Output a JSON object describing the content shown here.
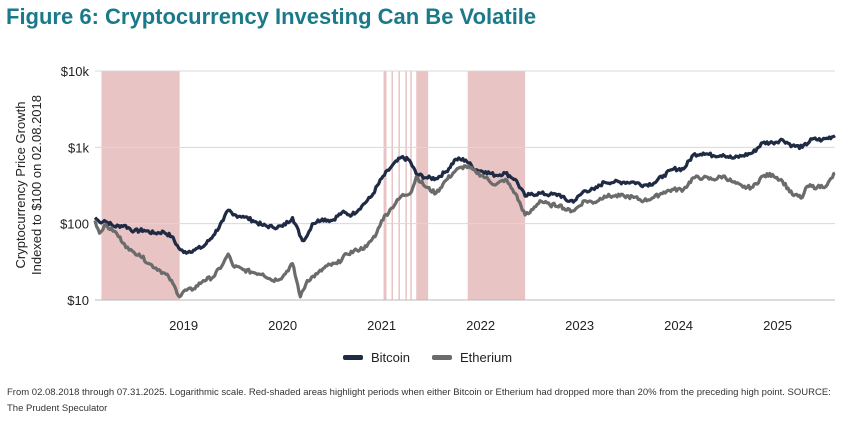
{
  "title": "Figure 6: Cryptocurrency Investing Can Be Volatile",
  "colors": {
    "title": "#1b7a8a",
    "bitcoin": "#1f2a44",
    "etherium": "#6b6b6b",
    "shade": "#e8c4c4",
    "grid": "#d8d8d8"
  },
  "footnote": "From 02.08.2018 through 07.31.2025. Logarithmic scale. Red-shaded areas highlight periods when either Bitcoin or Etherium had dropped more than 20% from the preceding high point. SOURCE: The Prudent Speculator",
  "chart_data": {
    "type": "line",
    "ylabel_lines": [
      "Cryptocurrency Price Growth",
      "Indexed to $100 on 02.08.2018"
    ],
    "y_scale": "log",
    "ylim": [
      10,
      10000
    ],
    "yticks": [
      10,
      100,
      1000,
      10000
    ],
    "ytick_labels": [
      "$10",
      "$100",
      "$1k",
      "$10k"
    ],
    "xlim": [
      2018.105,
      2025.58
    ],
    "xticks": [
      2019,
      2020,
      2021,
      2022,
      2023,
      2024,
      2025
    ],
    "xtick_labels": [
      "2019",
      "2020",
      "2021",
      "2022",
      "2023",
      "2024",
      "2025"
    ],
    "grid": "horizontal",
    "legend": "bottom-center",
    "shaded_periods": [
      [
        2018.17,
        2018.96
      ],
      [
        2021.02,
        2021.05
      ],
      [
        2021.1,
        2021.11
      ],
      [
        2021.17,
        2021.18
      ],
      [
        2021.24,
        2021.25
      ],
      [
        2021.29,
        2021.3
      ],
      [
        2021.35,
        2021.47
      ],
      [
        2021.87,
        2022.45
      ]
    ],
    "series": [
      {
        "name": "Bitcoin",
        "x": [
          2018.105,
          2018.15,
          2018.2,
          2018.3,
          2018.4,
          2018.5,
          2018.6,
          2018.7,
          2018.8,
          2018.88,
          2018.95,
          2019.0,
          2019.1,
          2019.2,
          2019.3,
          2019.4,
          2019.45,
          2019.5,
          2019.6,
          2019.7,
          2019.8,
          2019.9,
          2020.0,
          2020.1,
          2020.2,
          2020.25,
          2020.3,
          2020.4,
          2020.5,
          2020.6,
          2020.7,
          2020.8,
          2020.9,
          2021.0,
          2021.1,
          2021.2,
          2021.28,
          2021.35,
          2021.45,
          2021.55,
          2021.65,
          2021.75,
          2021.85,
          2021.95,
          2022.05,
          2022.15,
          2022.25,
          2022.35,
          2022.45,
          2022.5,
          2022.6,
          2022.7,
          2022.8,
          2022.87,
          2022.95,
          2023.05,
          2023.15,
          2023.25,
          2023.35,
          2023.45,
          2023.55,
          2023.65,
          2023.75,
          2023.85,
          2023.95,
          2024.05,
          2024.15,
          2024.25,
          2024.35,
          2024.45,
          2024.55,
          2024.65,
          2024.75,
          2024.85,
          2024.95,
          2025.05,
          2025.15,
          2025.25,
          2025.35,
          2025.45,
          2025.58
        ],
        "values": [
          120,
          105,
          110,
          92,
          95,
          80,
          82,
          75,
          78,
          68,
          48,
          42,
          45,
          50,
          70,
          110,
          150,
          130,
          125,
          110,
          95,
          90,
          92,
          120,
          60,
          70,
          100,
          115,
          110,
          140,
          130,
          170,
          230,
          390,
          560,
          740,
          680,
          450,
          400,
          390,
          480,
          700,
          680,
          510,
          480,
          430,
          460,
          380,
          230,
          240,
          250,
          240,
          240,
          200,
          200,
          270,
          280,
          350,
          350,
          350,
          350,
          320,
          340,
          430,
          520,
          520,
          800,
          840,
          780,
          800,
          720,
          780,
          850,
          1150,
          1150,
          1260,
          1050,
          1000,
          1280,
          1250,
          1420
        ]
      },
      {
        "name": "Etherium",
        "x": [
          2018.105,
          2018.15,
          2018.2,
          2018.3,
          2018.4,
          2018.45,
          2018.5,
          2018.55,
          2018.65,
          2018.75,
          2018.85,
          2018.92,
          2018.96,
          2019.0,
          2019.1,
          2019.2,
          2019.3,
          2019.4,
          2019.45,
          2019.5,
          2019.6,
          2019.7,
          2019.8,
          2019.9,
          2020.0,
          2020.1,
          2020.18,
          2020.25,
          2020.35,
          2020.45,
          2020.55,
          2020.65,
          2020.75,
          2020.85,
          2020.95,
          2021.0,
          2021.1,
          2021.2,
          2021.3,
          2021.35,
          2021.45,
          2021.55,
          2021.65,
          2021.75,
          2021.85,
          2021.95,
          2022.05,
          2022.15,
          2022.25,
          2022.35,
          2022.45,
          2022.5,
          2022.6,
          2022.7,
          2022.8,
          2022.87,
          2022.95,
          2023.05,
          2023.15,
          2023.25,
          2023.35,
          2023.45,
          2023.55,
          2023.65,
          2023.75,
          2023.85,
          2023.95,
          2024.05,
          2024.15,
          2024.25,
          2024.35,
          2024.45,
          2024.55,
          2024.65,
          2024.75,
          2024.85,
          2024.95,
          2025.05,
          2025.15,
          2025.25,
          2025.3,
          2025.4,
          2025.5,
          2025.58
        ],
        "values": [
          110,
          75,
          95,
          80,
          55,
          45,
          42,
          40,
          30,
          25,
          20,
          14,
          11,
          13,
          14,
          18,
          20,
          30,
          40,
          28,
          25,
          23,
          22,
          18,
          20,
          30,
          11,
          18,
          22,
          28,
          30,
          40,
          45,
          50,
          75,
          110,
          160,
          230,
          260,
          410,
          300,
          250,
          370,
          500,
          570,
          480,
          400,
          320,
          380,
          250,
          130,
          140,
          200,
          175,
          175,
          150,
          150,
          200,
          190,
          230,
          230,
          230,
          220,
          200,
          220,
          260,
          280,
          280,
          400,
          400,
          380,
          420,
          350,
          300,
          300,
          420,
          440,
          360,
          240,
          220,
          310,
          300,
          320,
          460
        ]
      }
    ]
  }
}
